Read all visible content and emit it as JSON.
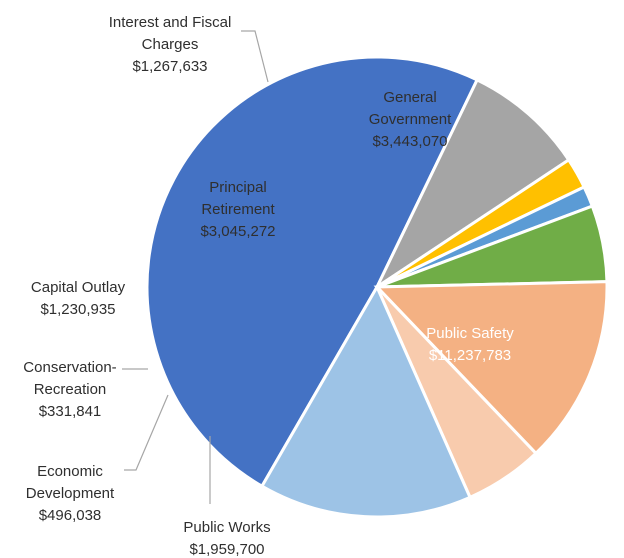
{
  "chart_data": {
    "type": "pie",
    "title": "",
    "slices": [
      {
        "label": "Public Safety",
        "value": 11237783,
        "value_text": "$11,237,783",
        "color": "#4472C4"
      },
      {
        "label": "Public Works",
        "value": 1959700,
        "value_text": "$1,959,700",
        "color": "#A5A5A5"
      },
      {
        "label": "Economic Development",
        "value": 496038,
        "value_text": "$496,038",
        "color": "#FFC000"
      },
      {
        "label": "Conservation-Recreation",
        "value": 331841,
        "value_text": "$331,841",
        "color": "#5B9BD5"
      },
      {
        "label": "Capital Outlay",
        "value": 1230935,
        "value_text": "$1,230,935",
        "color": "#70AD47"
      },
      {
        "label": "Principal Retirement",
        "value": 3045272,
        "value_text": "$3,045,272",
        "color": "#F4B183"
      },
      {
        "label": "Interest and Fiscal Charges",
        "value": 1267633,
        "value_text": "$1,267,633",
        "color": "#F8CBAD"
      },
      {
        "label": "General Government",
        "value": 3443070,
        "value_text": "$3,443,070",
        "color": "#9DC3E6"
      }
    ]
  }
}
